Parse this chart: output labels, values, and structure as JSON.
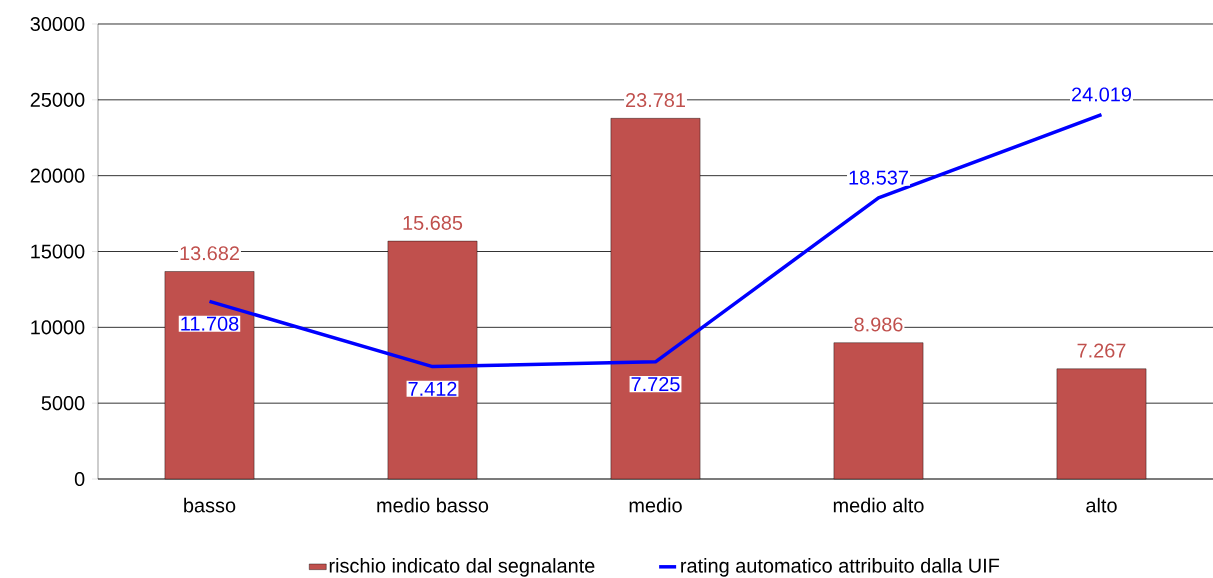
{
  "chart_data": {
    "type": "bar",
    "categories": [
      "basso",
      "medio basso",
      "medio",
      "medio alto",
      "alto"
    ],
    "series": [
      {
        "name": "rischio indicato dal segnalante",
        "color": "#c0504d",
        "values": [
          13682,
          15685,
          23781,
          8986,
          7267
        ],
        "value_labels": [
          "13.682",
          "15.685",
          "23.781",
          "8.986",
          "7.267"
        ]
      },
      {
        "name": "rating automatico attribuito dalla UIF",
        "type": "line",
        "color": "#0000ff",
        "values": [
          11708,
          7412,
          7725,
          18537,
          24019
        ],
        "value_labels": [
          "11.708",
          "7.412",
          "7.725",
          "18.537",
          "24.019"
        ]
      }
    ],
    "ylim": [
      0,
      30000
    ],
    "yticks": [
      0,
      5000,
      10000,
      15000,
      20000,
      25000,
      30000
    ],
    "grid": "y",
    "legend": "bottom"
  }
}
